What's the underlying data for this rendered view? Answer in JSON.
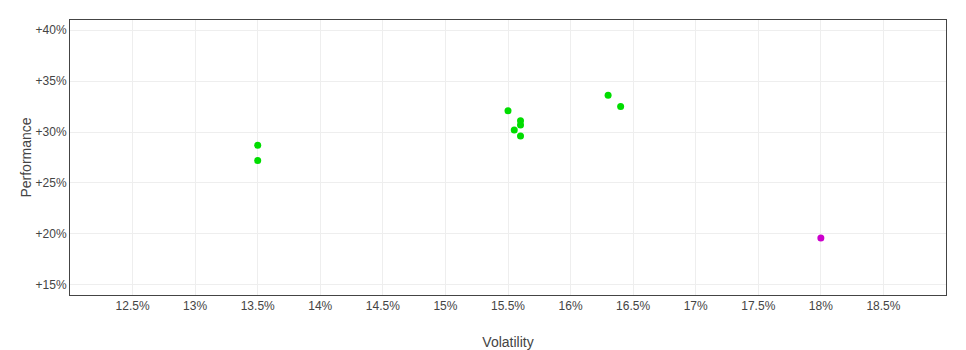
{
  "chart_data": {
    "type": "scatter",
    "xlabel": "Volatility",
    "ylabel": "Performance",
    "xlim": [
      0.12,
      0.19
    ],
    "ylim": [
      0.14,
      0.41
    ],
    "xticks": [
      {
        "value": 0.125,
        "label": "12.5%"
      },
      {
        "value": 0.13,
        "label": "13%"
      },
      {
        "value": 0.135,
        "label": "13.5%"
      },
      {
        "value": 0.14,
        "label": "14%"
      },
      {
        "value": 0.145,
        "label": "14.5%"
      },
      {
        "value": 0.15,
        "label": "15%"
      },
      {
        "value": 0.155,
        "label": "15.5%"
      },
      {
        "value": 0.16,
        "label": "16%"
      },
      {
        "value": 0.165,
        "label": "16.5%"
      },
      {
        "value": 0.17,
        "label": "17%"
      },
      {
        "value": 0.175,
        "label": "17.5%"
      },
      {
        "value": 0.18,
        "label": "18%"
      },
      {
        "value": 0.185,
        "label": "18.5%"
      }
    ],
    "yticks": [
      {
        "value": 0.15,
        "label": "+15%"
      },
      {
        "value": 0.2,
        "label": "+20%"
      },
      {
        "value": 0.25,
        "label": "+25%"
      },
      {
        "value": 0.3,
        "label": "+30%"
      },
      {
        "value": 0.35,
        "label": "+35%"
      },
      {
        "value": 0.4,
        "label": "+40%"
      }
    ],
    "grid": true,
    "series": [
      {
        "color": "#00dd00",
        "x": [
          0.135,
          0.135,
          0.155,
          0.156,
          0.156,
          0.1555,
          0.156,
          0.163,
          0.164
        ],
        "values": [
          0.287,
          0.272,
          0.321,
          0.311,
          0.307,
          0.302,
          0.296,
          0.336,
          0.325
        ]
      },
      {
        "color": "#cc00cc",
        "x": [
          0.18
        ],
        "values": [
          0.196
        ]
      }
    ]
  }
}
